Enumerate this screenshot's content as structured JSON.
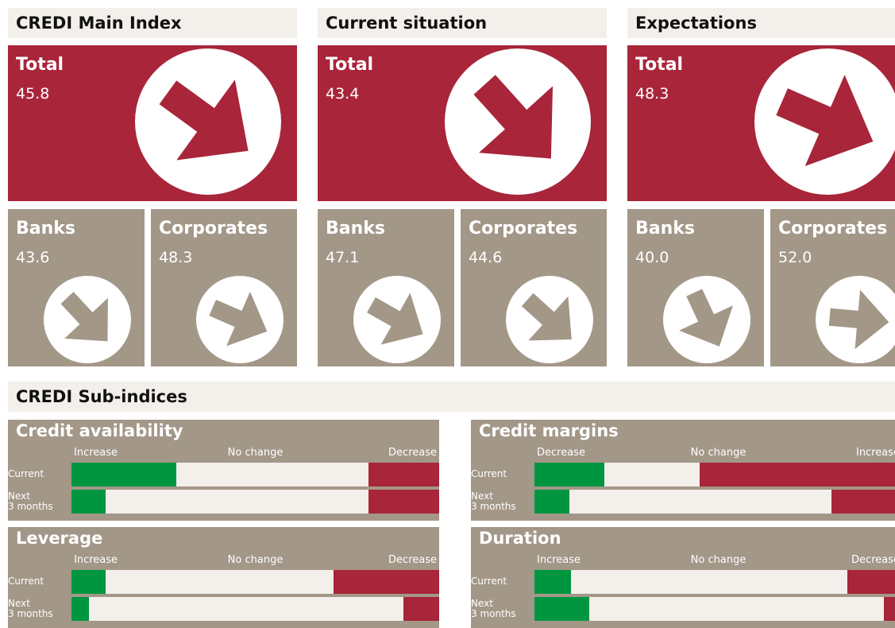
{
  "main": [
    {
      "header": "CREDI Main Index",
      "total": {
        "label": "Total",
        "value": 45.8
      },
      "banks": {
        "label": "Banks",
        "value": 43.6
      },
      "corporates": {
        "label": "Corporates",
        "value": 48.3
      }
    },
    {
      "header": "Current situation",
      "total": {
        "label": "Total",
        "value": 43.4
      },
      "banks": {
        "label": "Banks",
        "value": 47.1
      },
      "corporates": {
        "label": "Corporates",
        "value": 44.6
      }
    },
    {
      "header": "Expectations",
      "total": {
        "label": "Total",
        "value": 48.3
      },
      "banks": {
        "label": "Banks",
        "value": 40,
        "value_label": "40.0"
      },
      "corporates": {
        "label": "Corporates",
        "value": 52,
        "value_label": "52.0"
      }
    }
  ],
  "sub": {
    "header": "CREDI Sub-indices",
    "panels": [
      {
        "title": "Credit availability",
        "scale": [
          "Increase",
          "No change",
          "Decrease"
        ],
        "rows": [
          {
            "label": "Current",
            "green": 28.5,
            "red": 19.2
          },
          {
            "label": "Next\n3 months",
            "green": 9.3,
            "red": 19.2
          }
        ]
      },
      {
        "title": "Credit margins",
        "scale": [
          "Decrease",
          "No change",
          "Increase"
        ],
        "rows": [
          {
            "label": "Current",
            "green": 19,
            "red": 55
          },
          {
            "label": "Next\n3 months",
            "green": 9.5,
            "red": 19.2
          }
        ]
      },
      {
        "title": "Leverage",
        "scale": [
          "Increase",
          "No change",
          "Decrease"
        ],
        "rows": [
          {
            "label": "Current",
            "green": 9.3,
            "red": 28.7
          },
          {
            "label": "Next\n3 months",
            "green": 4.8,
            "red": 9.7
          }
        ]
      },
      {
        "title": "Duration",
        "scale": [
          "Increase",
          "No change",
          "Decrease"
        ],
        "rows": [
          {
            "label": "Current",
            "green": 10,
            "red": 15
          },
          {
            "label": "Next\n3 months",
            "green": 15,
            "red": 5
          }
        ]
      }
    ]
  }
}
